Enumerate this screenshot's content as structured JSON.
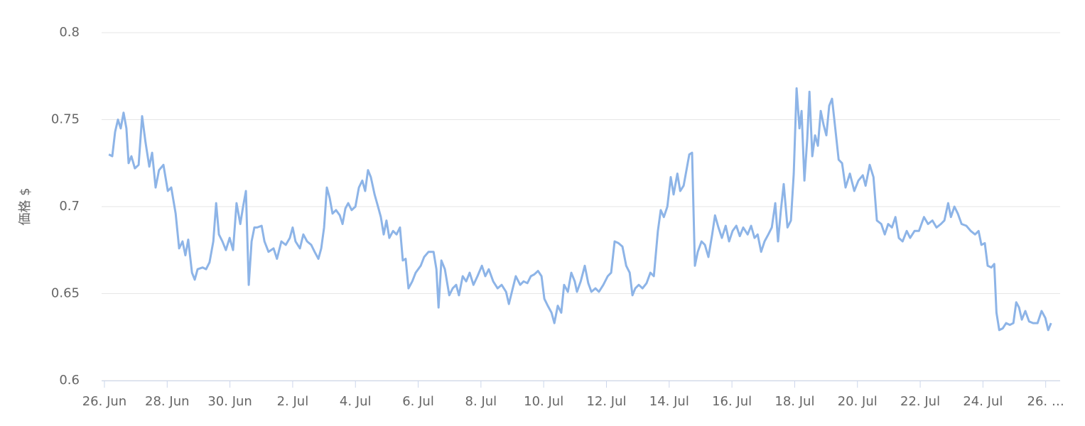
{
  "chart_data": {
    "type": "line",
    "y_label": "価格 $",
    "x": [
      0.14,
      0.25,
      0.34,
      0.43,
      0.52,
      0.61,
      0.7,
      0.77,
      0.86,
      0.97,
      1.09,
      1.2,
      1.31,
      1.43,
      1.52,
      1.63,
      1.74,
      1.88,
      2.02,
      2.13,
      2.27,
      2.38,
      2.49,
      2.58,
      2.67,
      2.79,
      2.88,
      2.97,
      3.13,
      3.24,
      3.35,
      3.47,
      3.56,
      3.65,
      3.76,
      3.87,
      3.99,
      4.1,
      4.21,
      4.33,
      4.42,
      4.51,
      4.6,
      4.69,
      4.78,
      4.87,
      5.01,
      5.1,
      5.23,
      5.39,
      5.5,
      5.64,
      5.78,
      5.91,
      6.0,
      6.09,
      6.23,
      6.34,
      6.46,
      6.59,
      6.7,
      6.82,
      6.91,
      7.0,
      7.09,
      7.18,
      7.27,
      7.38,
      7.5,
      7.59,
      7.68,
      7.77,
      7.88,
      8.0,
      8.11,
      8.22,
      8.31,
      8.4,
      8.49,
      8.61,
      8.72,
      8.81,
      8.9,
      8.99,
      9.08,
      9.2,
      9.31,
      9.42,
      9.51,
      9.6,
      9.69,
      9.81,
      9.92,
      10.08,
      10.19,
      10.33,
      10.49,
      10.58,
      10.65,
      10.74,
      10.85,
      10.99,
      11.1,
      11.21,
      11.3,
      11.42,
      11.53,
      11.64,
      11.76,
      11.89,
      12.03,
      12.14,
      12.25,
      12.39,
      12.53,
      12.66,
      12.8,
      12.89,
      13.0,
      13.11,
      13.25,
      13.36,
      13.48,
      13.59,
      13.7,
      13.82,
      13.93,
      14.02,
      14.13,
      14.25,
      14.34,
      14.45,
      14.56,
      14.65,
      14.77,
      14.88,
      14.99,
      15.06,
      15.18,
      15.31,
      15.42,
      15.52,
      15.65,
      15.76,
      15.9,
      16.04,
      16.15,
      16.26,
      16.38,
      16.51,
      16.63,
      16.74,
      16.83,
      16.92,
      17.03,
      17.15,
      17.28,
      17.4,
      17.51,
      17.64,
      17.73,
      17.83,
      17.94,
      18.05,
      18.14,
      18.26,
      18.35,
      18.46,
      18.55,
      18.64,
      18.73,
      18.82,
      18.91,
      19.03,
      19.14,
      19.25,
      19.37,
      19.46,
      19.57,
      19.68,
      19.8,
      19.91,
      20.02,
      20.14,
      20.25,
      20.36,
      20.5,
      20.61,
      20.72,
      20.82,
      20.93,
      21.04,
      21.16,
      21.27,
      21.38,
      21.47,
      21.56,
      21.65,
      21.77,
      21.88,
      21.97,
      22.06,
      22.15,
      22.22,
      22.31,
      22.4,
      22.47,
      22.56,
      22.65,
      22.74,
      22.83,
      22.92,
      23.01,
      23.1,
      23.19,
      23.28,
      23.4,
      23.51,
      23.62,
      23.76,
      23.9,
      24.03,
      24.17,
      24.26,
      24.39,
      24.51,
      24.62,
      24.76,
      24.87,
      24.98,
      25.1,
      25.21,
      25.32,
      25.44,
      25.57,
      25.68,
      25.82,
      25.96,
      26.12,
      26.25,
      26.39,
      26.52,
      26.66,
      26.77,
      26.89,
      26.98,
      27.09,
      27.2,
      27.32,
      27.47,
      27.61,
      27.75,
      27.86,
      27.95,
      28.06,
      28.15,
      28.27,
      28.36,
      28.43,
      28.52,
      28.63,
      28.74,
      28.86,
      28.97,
      29.06,
      29.15,
      29.24,
      29.35,
      29.47,
      29.6,
      29.74,
      29.87,
      29.99,
      30.08,
      30.17
    ],
    "series": [
      {
        "name": "価格",
        "color": "#8db4e7",
        "values": [
          0.73,
          0.729,
          0.743,
          0.75,
          0.745,
          0.754,
          0.745,
          0.725,
          0.729,
          0.722,
          0.724,
          0.752,
          0.737,
          0.723,
          0.731,
          0.711,
          0.721,
          0.724,
          0.709,
          0.711,
          0.696,
          0.676,
          0.68,
          0.672,
          0.681,
          0.662,
          0.658,
          0.664,
          0.665,
          0.664,
          0.668,
          0.68,
          0.702,
          0.684,
          0.68,
          0.675,
          0.682,
          0.675,
          0.702,
          0.69,
          0.7,
          0.709,
          0.655,
          0.68,
          0.688,
          0.688,
          0.689,
          0.68,
          0.674,
          0.676,
          0.67,
          0.68,
          0.678,
          0.682,
          0.688,
          0.68,
          0.676,
          0.684,
          0.68,
          0.678,
          0.674,
          0.67,
          0.676,
          0.688,
          0.711,
          0.705,
          0.696,
          0.698,
          0.695,
          0.69,
          0.699,
          0.702,
          0.698,
          0.7,
          0.711,
          0.715,
          0.709,
          0.721,
          0.717,
          0.707,
          0.7,
          0.694,
          0.684,
          0.692,
          0.682,
          0.686,
          0.684,
          0.688,
          0.669,
          0.67,
          0.653,
          0.657,
          0.662,
          0.666,
          0.671,
          0.674,
          0.674,
          0.664,
          0.642,
          0.669,
          0.664,
          0.649,
          0.653,
          0.655,
          0.649,
          0.66,
          0.657,
          0.662,
          0.655,
          0.66,
          0.666,
          0.66,
          0.664,
          0.657,
          0.653,
          0.655,
          0.651,
          0.644,
          0.652,
          0.66,
          0.655,
          0.657,
          0.656,
          0.66,
          0.661,
          0.663,
          0.66,
          0.647,
          0.643,
          0.639,
          0.633,
          0.643,
          0.639,
          0.655,
          0.651,
          0.662,
          0.657,
          0.651,
          0.657,
          0.666,
          0.656,
          0.651,
          0.653,
          0.651,
          0.655,
          0.66,
          0.662,
          0.68,
          0.679,
          0.677,
          0.666,
          0.662,
          0.649,
          0.653,
          0.655,
          0.653,
          0.656,
          0.662,
          0.66,
          0.686,
          0.698,
          0.694,
          0.7,
          0.717,
          0.707,
          0.719,
          0.709,
          0.712,
          0.721,
          0.73,
          0.731,
          0.666,
          0.674,
          0.68,
          0.678,
          0.671,
          0.684,
          0.695,
          0.688,
          0.682,
          0.689,
          0.68,
          0.686,
          0.689,
          0.683,
          0.688,
          0.684,
          0.689,
          0.682,
          0.684,
          0.674,
          0.68,
          0.684,
          0.688,
          0.702,
          0.68,
          0.698,
          0.713,
          0.688,
          0.692,
          0.719,
          0.768,
          0.745,
          0.755,
          0.715,
          0.739,
          0.766,
          0.729,
          0.741,
          0.735,
          0.755,
          0.747,
          0.741,
          0.758,
          0.762,
          0.747,
          0.727,
          0.725,
          0.711,
          0.719,
          0.709,
          0.715,
          0.718,
          0.712,
          0.724,
          0.717,
          0.692,
          0.69,
          0.684,
          0.69,
          0.688,
          0.694,
          0.682,
          0.68,
          0.686,
          0.682,
          0.686,
          0.686,
          0.694,
          0.69,
          0.692,
          0.688,
          0.69,
          0.692,
          0.702,
          0.694,
          0.7,
          0.696,
          0.69,
          0.689,
          0.686,
          0.684,
          0.686,
          0.678,
          0.679,
          0.666,
          0.665,
          0.667,
          0.639,
          0.629,
          0.63,
          0.633,
          0.632,
          0.633,
          0.645,
          0.642,
          0.635,
          0.64,
          0.634,
          0.633,
          0.633,
          0.64,
          0.636,
          0.629,
          0.633
        ]
      }
    ],
    "xlim": [
      -0.09,
      30.46
    ],
    "ylim": [
      0.6,
      0.8
    ],
    "xticks": [
      {
        "value": 0,
        "label": "26. Jun"
      },
      {
        "value": 2,
        "label": "28. Jun"
      },
      {
        "value": 4,
        "label": "30. Jun"
      },
      {
        "value": 6,
        "label": "2. Jul"
      },
      {
        "value": 8,
        "label": "4. Jul"
      },
      {
        "value": 10,
        "label": "6. Jul"
      },
      {
        "value": 12,
        "label": "8. Jul"
      },
      {
        "value": 14,
        "label": "10. Jul"
      },
      {
        "value": 16,
        "label": "12. Jul"
      },
      {
        "value": 18,
        "label": "14. Jul"
      },
      {
        "value": 20,
        "label": "16. Jul"
      },
      {
        "value": 22,
        "label": "18. Jul"
      },
      {
        "value": 24,
        "label": "20. Jul"
      },
      {
        "value": 26,
        "label": "22. Jul"
      },
      {
        "value": 28,
        "label": "24. Jul"
      },
      {
        "value": 30,
        "label": "26. …"
      }
    ],
    "yticks": [
      0.6,
      0.65,
      0.7,
      0.75,
      0.8
    ],
    "grid": true
  }
}
